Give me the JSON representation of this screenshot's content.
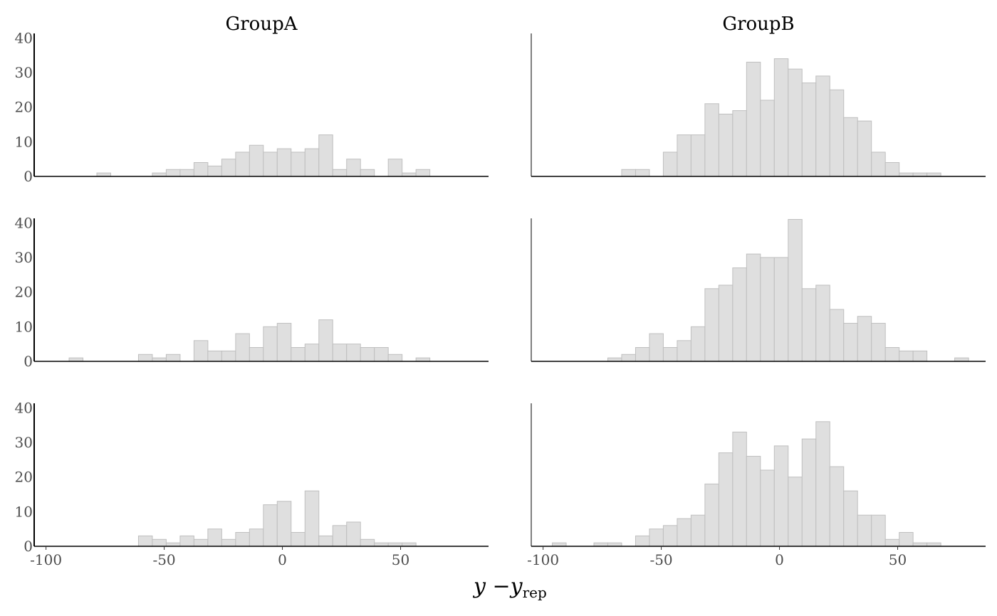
{
  "chart_data": {
    "type": "bar",
    "subtype": "faceted-histogram",
    "xlabel_main": "y −y",
    "xlabel_sub": "rep",
    "xlim": [
      -105,
      87.2
    ],
    "ylim": [
      0,
      41.3
    ],
    "x_ticks": [
      -100,
      -50,
      0,
      50
    ],
    "x_tick_labels": [
      "-100",
      "-50",
      "0",
      "50"
    ],
    "y_ticks": [
      0,
      10,
      20,
      30,
      40
    ],
    "y_tick_labels": [
      "0",
      "10",
      "20",
      "30",
      "40"
    ],
    "bin_start": -96.1,
    "bin_width": 5.87,
    "columns": [
      "GroupA",
      "GroupB"
    ],
    "panels": [
      {
        "group": "GroupA",
        "row": 1,
        "counts": [
          0,
          0,
          0,
          1,
          0,
          0,
          0,
          1,
          2,
          2,
          4,
          3,
          5,
          7,
          9,
          7,
          8,
          7,
          8,
          12,
          2,
          5,
          2,
          0,
          5,
          1,
          2,
          0,
          0,
          0
        ]
      },
      {
        "group": "GroupB",
        "row": 1,
        "counts": [
          0,
          0,
          0,
          0,
          0,
          2,
          2,
          0,
          7,
          12,
          12,
          21,
          18,
          19,
          33,
          22,
          34,
          31,
          27,
          29,
          25,
          17,
          16,
          7,
          4,
          1,
          1,
          1,
          0,
          0
        ]
      },
      {
        "group": "GroupA",
        "row": 2,
        "counts": [
          0,
          1,
          0,
          0,
          0,
          0,
          2,
          1,
          2,
          0,
          6,
          3,
          3,
          8,
          4,
          10,
          11,
          4,
          5,
          12,
          5,
          5,
          4,
          4,
          2,
          0,
          1,
          0,
          0,
          0
        ]
      },
      {
        "group": "GroupB",
        "row": 2,
        "counts": [
          0,
          0,
          0,
          0,
          1,
          2,
          4,
          8,
          4,
          6,
          10,
          21,
          22,
          27,
          31,
          30,
          30,
          41,
          21,
          22,
          15,
          11,
          13,
          11,
          4,
          3,
          3,
          0,
          0,
          1
        ]
      },
      {
        "group": "GroupA",
        "row": 3,
        "counts": [
          0,
          0,
          0,
          0,
          0,
          0,
          3,
          2,
          1,
          3,
          2,
          5,
          2,
          4,
          5,
          12,
          13,
          4,
          16,
          3,
          6,
          7,
          2,
          1,
          1,
          1,
          0,
          0,
          0,
          0
        ]
      },
      {
        "group": "GroupB",
        "row": 3,
        "counts": [
          1,
          0,
          0,
          1,
          1,
          0,
          3,
          5,
          6,
          8,
          9,
          18,
          27,
          33,
          26,
          22,
          29,
          20,
          31,
          36,
          23,
          16,
          9,
          9,
          2,
          4,
          1,
          1,
          0,
          0
        ]
      }
    ],
    "colors": {
      "bar_fill": "#dfdfdf",
      "bar_stroke": "#bfbfbf",
      "axis": "#000000",
      "tick_text": "#4d4d4d"
    }
  }
}
